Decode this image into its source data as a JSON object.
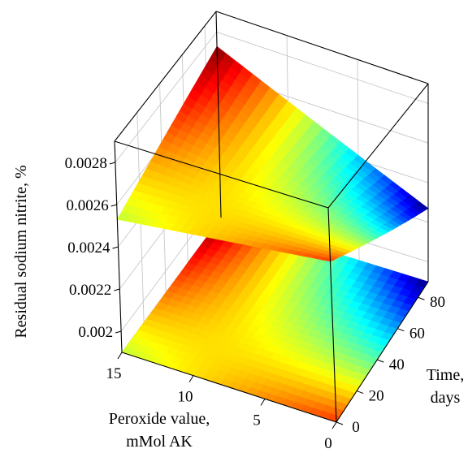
{
  "chart_data": {
    "type": "surface",
    "zlabel": "Residual sodium nitrite, %",
    "xlabel_line1": "Peroxide value,",
    "xlabel_line2": "mMol AK",
    "ylabel_line1": "Time,",
    "ylabel_line2": "days",
    "x_ticks": [
      "15",
      "10",
      "5",
      "0"
    ],
    "y_ticks": [
      "0",
      "20",
      "40",
      "60",
      "80"
    ],
    "z_ticks": [
      "0.0028",
      "0.0026",
      "0.0024",
      "0.0022",
      "0.002"
    ],
    "x_range": [
      0,
      15
    ],
    "y_range": [
      0,
      90
    ],
    "z_range": [
      0.0019,
      0.0029
    ],
    "colormap": "jet",
    "projection": "contour on floor",
    "grid": true,
    "surface_corners": [
      {
        "peroxide": 15,
        "time": 0,
        "nitrite": 0.00253
      },
      {
        "peroxide": 15,
        "time": 90,
        "nitrite": 0.00273
      },
      {
        "peroxide": 0,
        "time": 0,
        "nitrite": 0.00265
      },
      {
        "peroxide": 0,
        "time": 90,
        "nitrite": 0.00227
      }
    ]
  }
}
